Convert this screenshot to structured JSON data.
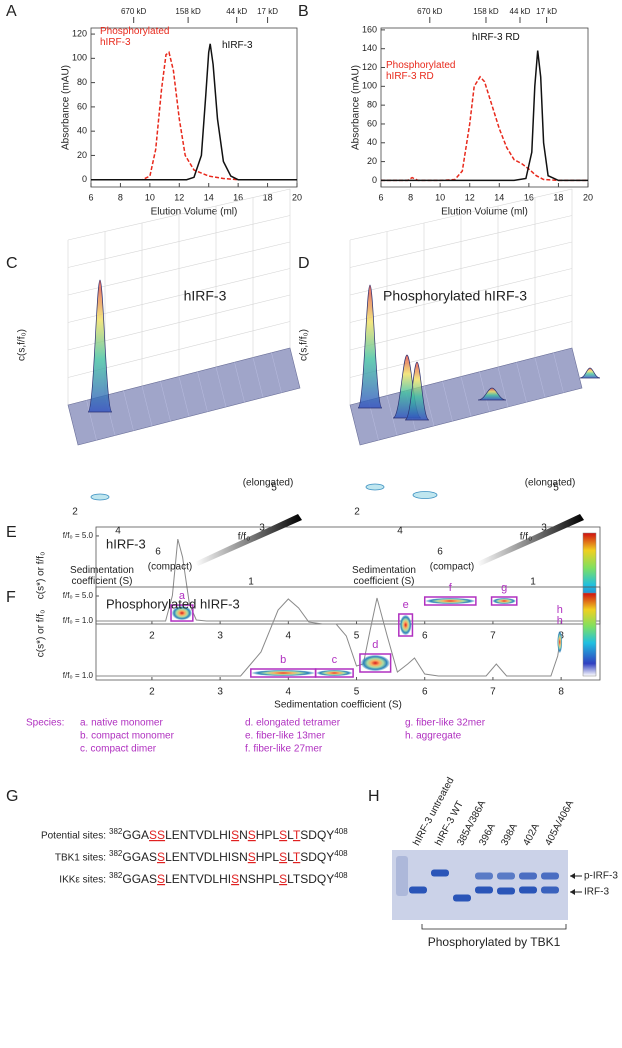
{
  "panel_labels": [
    "A",
    "B",
    "C",
    "D",
    "E",
    "F",
    "G",
    "H"
  ],
  "chart_data": [
    {
      "type": "line",
      "xlabel": "Elution Volume (ml)",
      "ylabel": "Absorbance (mAU)",
      "xlim": [
        6,
        20
      ],
      "xticks": [
        6,
        8,
        10,
        12,
        14,
        16,
        18,
        20
      ],
      "ylim": [
        -6,
        125
      ],
      "yticks": [
        0,
        20,
        40,
        60,
        80,
        100,
        120
      ],
      "markers": [
        {
          "value": 8.9,
          "label": "670 kD"
        },
        {
          "value": 12.6,
          "label": "158 kD"
        },
        {
          "value": 15.9,
          "label": "44 kD"
        },
        {
          "value": 18.0,
          "label": "17 kD"
        }
      ],
      "series": [
        {
          "name": "Phosphorylated hIRF-3",
          "color": "#e8291c",
          "dash": true,
          "x": [
            6,
            9.5,
            10,
            10.4,
            10.8,
            11.1,
            11.3,
            11.6,
            12,
            12.4,
            13,
            14,
            15,
            16,
            20
          ],
          "values": [
            0,
            0,
            3,
            25,
            75,
            103,
            105,
            90,
            50,
            20,
            8,
            3,
            1,
            0,
            0
          ]
        },
        {
          "name": "hIRF-3",
          "color": "#111111",
          "dash": false,
          "x": [
            6,
            12.5,
            13,
            13.5,
            13.8,
            14,
            14.1,
            14.3,
            14.6,
            15,
            15.5,
            16,
            20
          ],
          "values": [
            0,
            0,
            2,
            20,
            70,
            105,
            112,
            95,
            50,
            15,
            3,
            0,
            0
          ]
        }
      ]
    },
    {
      "type": "line",
      "xlabel": "Elution Volume (ml)",
      "ylabel": "Absorbance (mAU)",
      "xlim": [
        6,
        20
      ],
      "xticks": [
        6,
        8,
        10,
        12,
        14,
        16,
        18,
        20
      ],
      "ylim": [
        -7,
        162
      ],
      "yticks": [
        0,
        20,
        40,
        60,
        80,
        100,
        120,
        140,
        160
      ],
      "markers": [
        {
          "value": 9.3,
          "label": "670 kD"
        },
        {
          "value": 13.1,
          "label": "158 kD"
        },
        {
          "value": 15.4,
          "label": "44 kD"
        },
        {
          "value": 17.2,
          "label": "17 kD"
        }
      ],
      "series": [
        {
          "name": "Phosphorylated hIRF-3 RD",
          "color": "#e8291c",
          "dash": true,
          "x": [
            6,
            7.8,
            8.1,
            8.5,
            10,
            11,
            11.5,
            12,
            12.3,
            12.7,
            13,
            13.5,
            14,
            14.5,
            15,
            15.5,
            16,
            16.5,
            17,
            18,
            20
          ],
          "values": [
            0,
            0,
            3,
            0,
            0,
            1,
            10,
            60,
            100,
            110,
            105,
            80,
            55,
            35,
            22,
            18,
            12,
            5,
            1,
            0,
            0
          ]
        },
        {
          "name": "hIRF-3 RD",
          "color": "#111111",
          "dash": false,
          "x": [
            6,
            15,
            15.8,
            16.2,
            16.4,
            16.6,
            16.8,
            17,
            17.3,
            18,
            20
          ],
          "values": [
            0,
            0,
            2,
            30,
            100,
            138,
            110,
            40,
            5,
            0,
            0
          ]
        }
      ]
    },
    {
      "type": "heatmap",
      "title": "hIRF-3",
      "ylabel": "c(s*) or f/f₀",
      "xlim": [
        1.18,
        8.57
      ],
      "xticks": [
        2,
        3,
        4,
        5,
        6,
        7,
        8
      ],
      "ylim": [
        0.86,
        5.42
      ],
      "yticks": [
        {
          "value": 1,
          "label": "f/f₀ = 1.0"
        },
        {
          "value": 5,
          "label": "f/f₀ = 5.0"
        }
      ],
      "line": {
        "color": "#8a8a8a",
        "x": [
          1.18,
          2.2,
          2.3,
          2.38,
          2.45,
          2.55,
          2.65,
          2.8,
          8.57
        ],
        "values": [
          1,
          1,
          2.2,
          4.85,
          4.0,
          1.8,
          1.05,
          1,
          1
        ]
      },
      "boxes": [
        {
          "label": "a",
          "x": [
            2.28,
            2.6
          ],
          "y": [
            1.0,
            1.75
          ],
          "frame": true
        },
        {
          "label": "h",
          "x": [
            7.93,
            8.03
          ],
          "y": [
            1.0,
            1.1
          ],
          "frame": false
        }
      ]
    },
    {
      "type": "heatmap",
      "title": "Phosphorylated hIRF-3",
      "xlabel": "Sedimentation coefficient (S)",
      "ylabel": "c(s*) or f/f₀",
      "xlim": [
        1.18,
        8.57
      ],
      "xticks": [
        2,
        3,
        4,
        5,
        6,
        7,
        8
      ],
      "ylim": [
        0.8,
        5.45
      ],
      "yticks": [
        {
          "value": 1,
          "label": "f/f₀ = 1.0"
        },
        {
          "value": 5,
          "label": "f/f₀ = 5.0"
        }
      ],
      "line": {
        "color": "#8a8a8a",
        "x": [
          1.18,
          3.3,
          3.6,
          3.85,
          4.0,
          4.15,
          4.3,
          4.5,
          4.7,
          4.85,
          5.0,
          5.1,
          5.2,
          5.3,
          5.45,
          5.6,
          5.75,
          5.85,
          6.0,
          6.2,
          6.9,
          7.05,
          7.2,
          7.85,
          7.95,
          8.0
        ],
        "values": [
          1,
          1,
          2.2,
          4.3,
          4.85,
          4.4,
          3.7,
          3.6,
          3.6,
          3.0,
          1.5,
          1.6,
          3.3,
          4.9,
          3.0,
          1.2,
          1.6,
          1.9,
          1.1,
          1,
          1,
          1.6,
          1,
          1,
          2.0,
          3.1
        ]
      },
      "boxes": [
        {
          "label": "b",
          "x": [
            3.45,
            4.4
          ],
          "y": [
            0.95,
            1.35
          ],
          "frame": true
        },
        {
          "label": "c",
          "x": [
            4.4,
            4.95
          ],
          "y": [
            0.95,
            1.35
          ],
          "frame": true
        },
        {
          "label": "d",
          "x": [
            5.05,
            5.5
          ],
          "y": [
            1.2,
            2.1
          ],
          "frame": true
        },
        {
          "label": "e",
          "x": [
            5.62,
            5.82
          ],
          "y": [
            3.0,
            4.1
          ],
          "frame": true
        },
        {
          "label": "f",
          "x": [
            6.0,
            6.75
          ],
          "y": [
            4.55,
            4.95
          ],
          "frame": true
        },
        {
          "label": "g",
          "x": [
            6.98,
            7.35
          ],
          "y": [
            4.55,
            4.95
          ],
          "frame": true
        },
        {
          "label": "h",
          "x": [
            7.93,
            8.03
          ],
          "y": [
            2.1,
            3.3
          ],
          "frame": false
        }
      ]
    }
  ],
  "surface_panels": [
    {
      "title": "hIRF-3",
      "zlabel": "c(s,f/f₀)",
      "xlabel": "Sedimentation coefficient (S)",
      "ylabel": "f/f₀",
      "xticks": [
        2,
        4,
        6
      ],
      "yticks": [
        1,
        3,
        5
      ],
      "high_label": "(elongated)",
      "low_label": "(compact)"
    },
    {
      "title": "Phosphorylated hIRF-3",
      "zlabel": "c(s,f/f₀)",
      "xlabel": "Sedimentation coefficient (S)",
      "ylabel": "f/f₀",
      "xticks": [
        2,
        4,
        6
      ],
      "yticks": [
        1,
        3,
        5
      ],
      "high_label": "(elongated)",
      "low_label": "(compact)"
    }
  ],
  "species_legend": {
    "title": "Species:",
    "items": [
      "a. native monomer",
      "b. compact monomer",
      "c. compact dimer",
      "d. elongated tetramer",
      "e. fiber-like 13mer",
      "f. fiber-like 27mer",
      "g. fiber-like 32mer",
      "h. aggregate"
    ]
  },
  "sequences": {
    "rows": [
      {
        "label": "Potential sites:",
        "start": "382",
        "end": "408",
        "segments": [
          {
            "text": "GGA",
            "highlight": false
          },
          {
            "text": "S",
            "highlight": true
          },
          {
            "text": "S",
            "highlight": true
          },
          {
            "text": "LENTVDLHI",
            "highlight": false
          },
          {
            "text": "S",
            "highlight": true
          },
          {
            "text": "N",
            "highlight": false
          },
          {
            "text": "S",
            "highlight": true
          },
          {
            "text": "HPL",
            "highlight": false
          },
          {
            "text": "S",
            "highlight": true
          },
          {
            "text": "L",
            "highlight": false
          },
          {
            "text": "T",
            "highlight": true
          },
          {
            "text": "SDQY",
            "highlight": false
          }
        ]
      },
      {
        "label": "TBK1 sites:",
        "start": "382",
        "end": "408",
        "segments": [
          {
            "text": "GGAS",
            "highlight": false
          },
          {
            "text": "S",
            "highlight": true
          },
          {
            "text": "LENTVDLHISN",
            "highlight": false
          },
          {
            "text": "S",
            "highlight": true
          },
          {
            "text": "HPL",
            "highlight": false
          },
          {
            "text": "S",
            "highlight": true
          },
          {
            "text": "L",
            "highlight": false
          },
          {
            "text": "T",
            "highlight": true
          },
          {
            "text": "SDQY",
            "highlight": false
          }
        ]
      },
      {
        "label": "IKKε sites:",
        "start": "382",
        "end": "408",
        "segments": [
          {
            "text": "GGAS",
            "highlight": false
          },
          {
            "text": "S",
            "highlight": true
          },
          {
            "text": "LENTVDLHI",
            "highlight": false
          },
          {
            "text": "S",
            "highlight": true
          },
          {
            "text": "NSHPL",
            "highlight": false
          },
          {
            "text": "S",
            "highlight": true
          },
          {
            "text": "LTSDQY",
            "highlight": false
          }
        ]
      }
    ]
  },
  "gel": {
    "lanes": [
      "hIRF-3 untreated",
      "hIRF-3 WT",
      "385A/386A",
      "396A",
      "398A",
      "402A",
      "405A/406A"
    ],
    "bands": [
      "p-IRF-3",
      "IRF-3"
    ],
    "caption": "Phosphorylated by TBK1"
  }
}
